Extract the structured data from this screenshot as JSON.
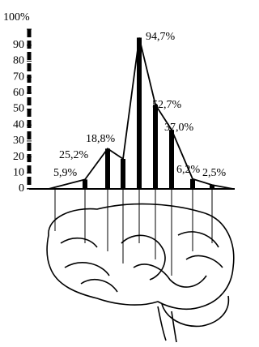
{
  "chart_data": {
    "type": "bar",
    "categories": [
      null,
      null,
      null,
      null,
      null,
      null,
      null,
      null
    ],
    "values": [
      5.9,
      25.2,
      18.8,
      94.7,
      52.7,
      37.0,
      6.2,
      2.5
    ],
    "value_labels": [
      "5,9%",
      "25,2%",
      "18,8%",
      "94,7%",
      "52,7%",
      "37,0%",
      "6,2%",
      "2,5%"
    ],
    "color": "#000000",
    "ylim": [
      0,
      100
    ],
    "yticks": [
      0,
      10,
      20,
      30,
      40,
      50,
      60,
      70,
      80,
      90,
      {
        "value": 100,
        "label": "100%"
      }
    ]
  }
}
